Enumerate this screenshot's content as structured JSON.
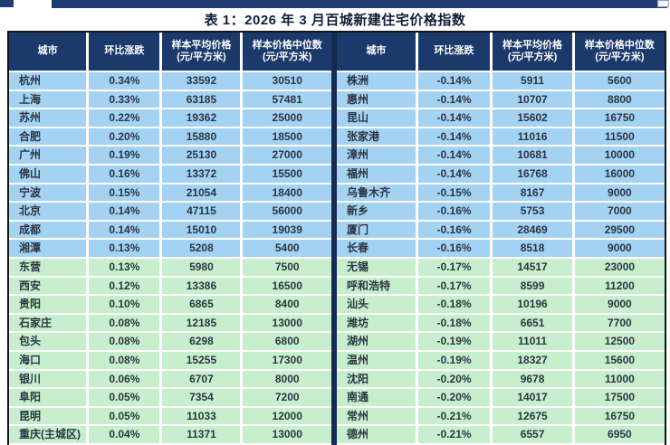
{
  "page": {
    "title": "表 1：2026 年 3 月百城新建住宅价格指数"
  },
  "colors": {
    "header_navy": "#1b3a6b",
    "row_blue": "#a4d2f3",
    "row_green": "#c7efcd",
    "divider_navy": "#152b52",
    "border_black": "#151515"
  },
  "table": {
    "columns": [
      {
        "label": "城市",
        "unit": ""
      },
      {
        "label": "环比涨跌",
        "unit": ""
      },
      {
        "label": "样本平均价格",
        "unit": "(元/平方米)"
      },
      {
        "label": "样本价格中位数",
        "unit": "(元/平方米)"
      }
    ],
    "left": {
      "rows": [
        {
          "city": "杭州",
          "change": "0.34%",
          "avg_price": "33592",
          "median_price": "30510"
        },
        {
          "city": "上海",
          "change": "0.33%",
          "avg_price": "63185",
          "median_price": "57481"
        },
        {
          "city": "苏州",
          "change": "0.22%",
          "avg_price": "19362",
          "median_price": "25000"
        },
        {
          "city": "合肥",
          "change": "0.20%",
          "avg_price": "15880",
          "median_price": "18500"
        },
        {
          "city": "广州",
          "change": "0.19%",
          "avg_price": "25130",
          "median_price": "27000"
        },
        {
          "city": "佛山",
          "change": "0.16%",
          "avg_price": "13372",
          "median_price": "15500"
        },
        {
          "city": "宁波",
          "change": "0.15%",
          "avg_price": "21054",
          "median_price": "18400"
        },
        {
          "city": "北京",
          "change": "0.14%",
          "avg_price": "47115",
          "median_price": "56000"
        },
        {
          "city": "成都",
          "change": "0.14%",
          "avg_price": "15010",
          "median_price": "19039"
        },
        {
          "city": "湘潭",
          "change": "0.13%",
          "avg_price": "5208",
          "median_price": "5400"
        },
        {
          "city": "东营",
          "change": "0.13%",
          "avg_price": "5980",
          "median_price": "7500"
        },
        {
          "city": "西安",
          "change": "0.12%",
          "avg_price": "13386",
          "median_price": "16500"
        },
        {
          "city": "贵阳",
          "change": "0.10%",
          "avg_price": "6865",
          "median_price": "8400"
        },
        {
          "city": "石家庄",
          "change": "0.08%",
          "avg_price": "12185",
          "median_price": "13000"
        },
        {
          "city": "包头",
          "change": "0.08%",
          "avg_price": "6298",
          "median_price": "6800"
        },
        {
          "city": "海口",
          "change": "0.08%",
          "avg_price": "15255",
          "median_price": "17300"
        },
        {
          "city": "银川",
          "change": "0.06%",
          "avg_price": "6707",
          "median_price": "8000"
        },
        {
          "city": "阜阳",
          "change": "0.05%",
          "avg_price": "7354",
          "median_price": "7200"
        },
        {
          "city": "昆明",
          "change": "0.05%",
          "avg_price": "11033",
          "median_price": "12000"
        },
        {
          "city": "重庆(主城区)",
          "change": "0.04%",
          "avg_price": "11371",
          "median_price": "13000"
        }
      ]
    },
    "right": {
      "rows": [
        {
          "city": "株洲",
          "change": "-0.14%",
          "avg_price": "5911",
          "median_price": "5600"
        },
        {
          "city": "惠州",
          "change": "-0.14%",
          "avg_price": "10707",
          "median_price": "8800"
        },
        {
          "city": "昆山",
          "change": "-0.14%",
          "avg_price": "15602",
          "median_price": "16750"
        },
        {
          "city": "张家港",
          "change": "-0.14%",
          "avg_price": "11016",
          "median_price": "11500"
        },
        {
          "city": "漳州",
          "change": "-0.14%",
          "avg_price": "10681",
          "median_price": "10000"
        },
        {
          "city": "福州",
          "change": "-0.14%",
          "avg_price": "16768",
          "median_price": "16000"
        },
        {
          "city": "乌鲁木齐",
          "change": "-0.15%",
          "avg_price": "8167",
          "median_price": "9000"
        },
        {
          "city": "新乡",
          "change": "-0.16%",
          "avg_price": "5753",
          "median_price": "7000"
        },
        {
          "city": "厦门",
          "change": "-0.16%",
          "avg_price": "28469",
          "median_price": "29500"
        },
        {
          "city": "长春",
          "change": "-0.16%",
          "avg_price": "8518",
          "median_price": "9000"
        },
        {
          "city": "无锡",
          "change": "-0.17%",
          "avg_price": "14517",
          "median_price": "23000"
        },
        {
          "city": "呼和浩特",
          "change": "-0.17%",
          "avg_price": "8599",
          "median_price": "11200"
        },
        {
          "city": "汕头",
          "change": "-0.18%",
          "avg_price": "10196",
          "median_price": "9000"
        },
        {
          "city": "潍坊",
          "change": "-0.18%",
          "avg_price": "6651",
          "median_price": "7700"
        },
        {
          "city": "湖州",
          "change": "-0.19%",
          "avg_price": "11011",
          "median_price": "12500"
        },
        {
          "city": "温州",
          "change": "-0.19%",
          "avg_price": "18327",
          "median_price": "15600"
        },
        {
          "city": "沈阳",
          "change": "-0.20%",
          "avg_price": "9678",
          "median_price": "11000"
        },
        {
          "city": "南通",
          "change": "-0.20%",
          "avg_price": "14017",
          "median_price": "17500"
        },
        {
          "city": "常州",
          "change": "-0.21%",
          "avg_price": "12675",
          "median_price": "16750"
        },
        {
          "city": "德州",
          "change": "-0.21%",
          "avg_price": "6557",
          "median_price": "6950"
        }
      ]
    }
  }
}
